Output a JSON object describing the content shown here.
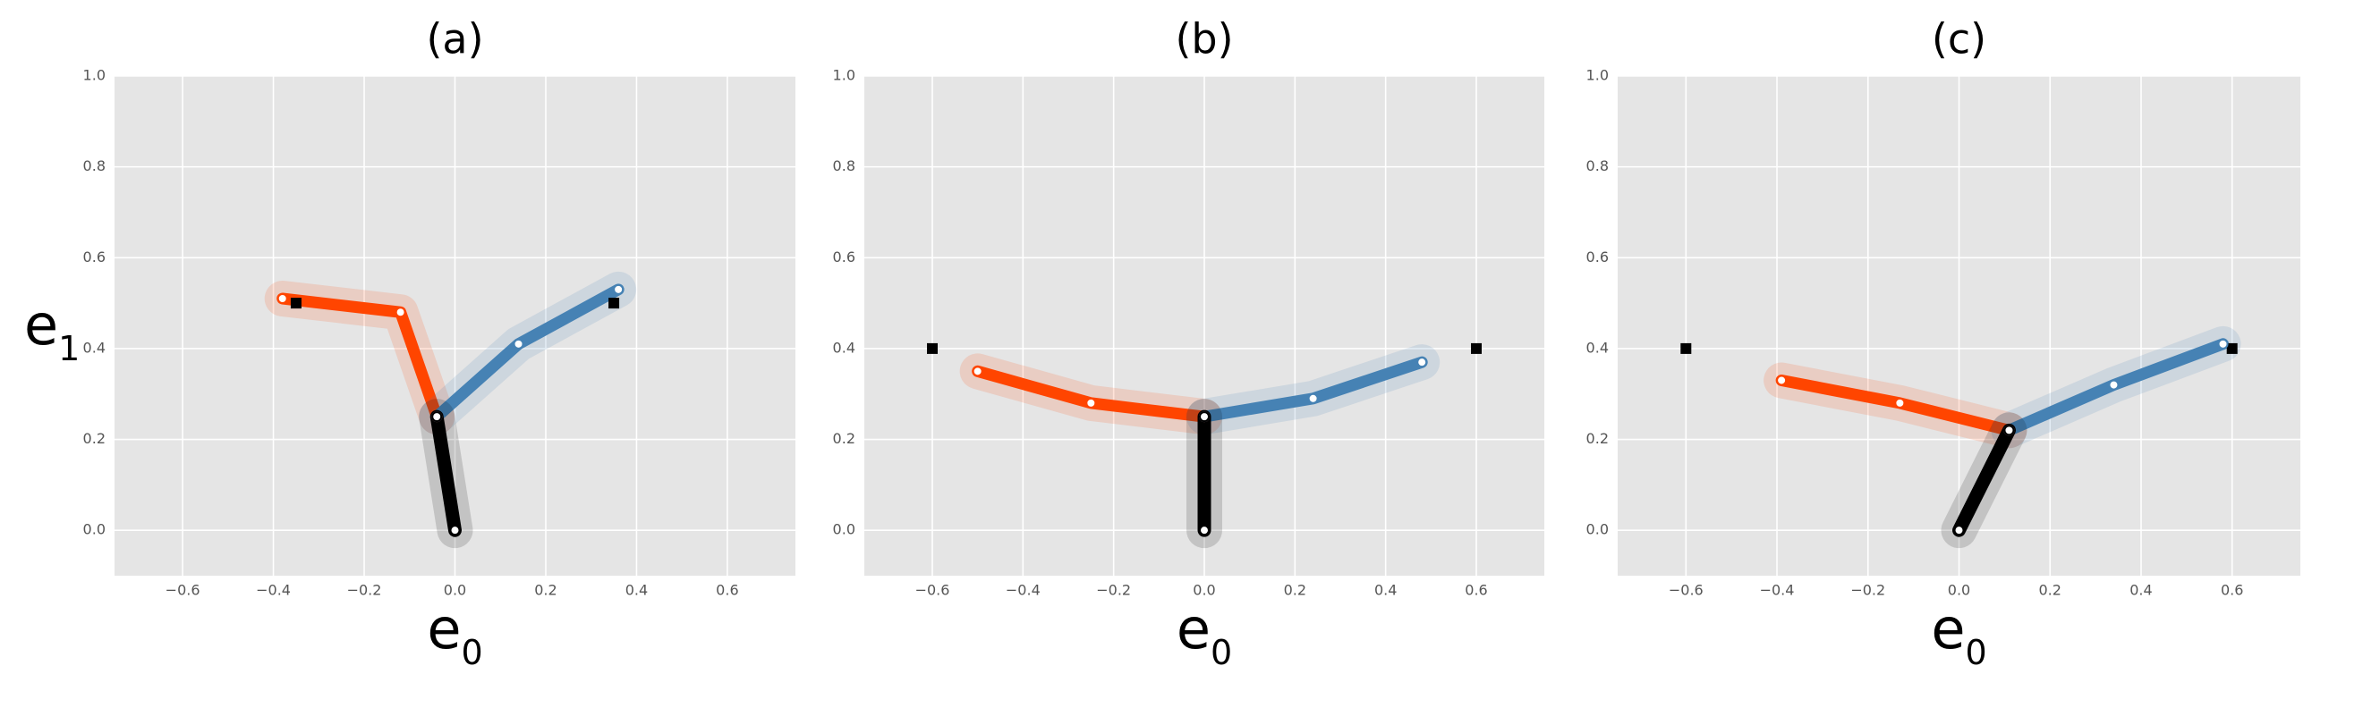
{
  "chart_data": [
    {
      "type": "line",
      "title": "(a)",
      "xlabel": "e",
      "xlabel_sub": "0",
      "ylabel": "e",
      "ylabel_sub": "1",
      "xlim": [
        -0.75,
        0.75
      ],
      "ylim": [
        -0.1,
        1.0
      ],
      "grid": true,
      "xticks": [
        {
          "value": -0.6,
          "label": "−0.6"
        },
        {
          "value": -0.4,
          "label": "−0.4"
        },
        {
          "value": -0.2,
          "label": "−0.2"
        },
        {
          "value": 0,
          "label": "0.0"
        },
        0.2,
        0.4,
        0.6
      ],
      "yticks": [
        {
          "value": 0,
          "label": "0.0"
        },
        0.2,
        0.4,
        0.6,
        0.8,
        {
          "value": 1,
          "label": "1.0"
        }
      ],
      "series": [
        {
          "color": "#ff4500",
          "style": "line",
          "x": [
            -0.04,
            -0.12,
            -0.38
          ],
          "values": [
            0.25,
            0.48,
            0.51
          ]
        },
        {
          "color": "#4682b4",
          "style": "line",
          "x": [
            -0.04,
            0.14,
            0.36
          ],
          "values": [
            0.25,
            0.41,
            0.53
          ]
        },
        {
          "color": "#000000",
          "style": "line",
          "x": [
            0,
            -0.04
          ],
          "values": [
            0,
            0.25
          ]
        },
        {
          "color": "#000000",
          "style": "square",
          "x": [
            -0.35,
            0.35
          ],
          "values": [
            0.5,
            0.5
          ]
        }
      ]
    },
    {
      "type": "line",
      "title": "(b)",
      "xlabel": "e",
      "xlabel_sub": "0",
      "xlim": [
        -0.75,
        0.75
      ],
      "ylim": [
        -0.1,
        1.0
      ],
      "grid": true,
      "xticks": [
        {
          "value": -0.6,
          "label": "−0.6"
        },
        {
          "value": -0.4,
          "label": "−0.4"
        },
        {
          "value": -0.2,
          "label": "−0.2"
        },
        {
          "value": 0,
          "label": "0.0"
        },
        0.2,
        0.4,
        0.6
      ],
      "yticks": [
        {
          "value": 0,
          "label": "0.0"
        },
        0.2,
        0.4,
        0.6,
        0.8,
        {
          "value": 1,
          "label": "1.0"
        }
      ],
      "series": [
        {
          "color": "#ff4500",
          "style": "line",
          "x": [
            0,
            -0.25,
            -0.5
          ],
          "values": [
            0.25,
            0.28,
            0.35
          ]
        },
        {
          "color": "#4682b4",
          "style": "line",
          "x": [
            0,
            0.24,
            0.48
          ],
          "values": [
            0.25,
            0.29,
            0.37
          ]
        },
        {
          "color": "#000000",
          "style": "line",
          "x": [
            0,
            0
          ],
          "values": [
            0,
            0.25
          ]
        },
        {
          "color": "#000000",
          "style": "square",
          "x": [
            -0.6,
            0.6
          ],
          "values": [
            0.4,
            0.4
          ]
        }
      ]
    },
    {
      "type": "line",
      "title": "(c)",
      "xlabel": "e",
      "xlabel_sub": "0",
      "xlim": [
        -0.75,
        0.75
      ],
      "ylim": [
        -0.1,
        1.0
      ],
      "grid": true,
      "xticks": [
        {
          "value": -0.6,
          "label": "−0.6"
        },
        {
          "value": -0.4,
          "label": "−0.4"
        },
        {
          "value": -0.2,
          "label": "−0.2"
        },
        {
          "value": 0,
          "label": "0.0"
        },
        0.2,
        0.4,
        0.6
      ],
      "yticks": [
        {
          "value": 0,
          "label": "0.0"
        },
        0.2,
        0.4,
        0.6,
        0.8,
        {
          "value": 1,
          "label": "1.0"
        }
      ],
      "series": [
        {
          "color": "#ff4500",
          "style": "line",
          "x": [
            0.11,
            -0.13,
            -0.39
          ],
          "values": [
            0.22,
            0.28,
            0.33
          ]
        },
        {
          "color": "#4682b4",
          "style": "line",
          "x": [
            0.11,
            0.34,
            0.58
          ],
          "values": [
            0.22,
            0.32,
            0.41
          ]
        },
        {
          "color": "#000000",
          "style": "line",
          "x": [
            0,
            0.11
          ],
          "values": [
            0,
            0.22
          ]
        },
        {
          "color": "#000000",
          "style": "square",
          "x": [
            -0.6,
            0.6
          ],
          "values": [
            0.4,
            0.4
          ]
        }
      ]
    }
  ]
}
